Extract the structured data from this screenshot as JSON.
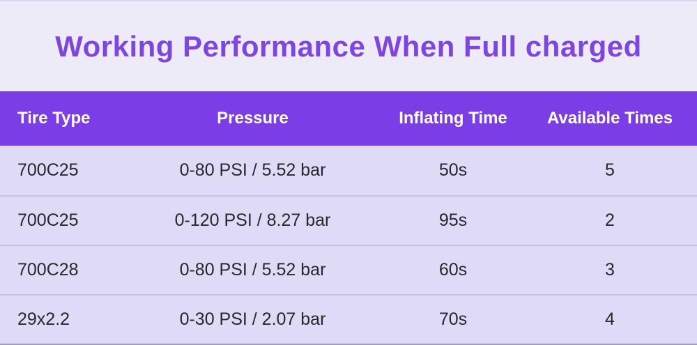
{
  "title": "Working Performance When Full charged",
  "table": {
    "headers": [
      "Tire Type",
      "Pressure",
      "Inflating Time",
      "Available Times"
    ],
    "rows": [
      [
        "700C25",
        "0-80 PSI / 5.52 bar",
        "50s",
        "5"
      ],
      [
        "700C25",
        "0-120 PSI / 8.27 bar",
        "95s",
        "2"
      ],
      [
        "700C28",
        "0-80 PSI / 5.52 bar",
        "60s",
        "3"
      ],
      [
        "29x2.2",
        "0-30 PSI / 2.07 bar",
        "70s",
        "4"
      ]
    ]
  },
  "colors": {
    "page_bg": "#eeebf9",
    "header_bg": "#7a3de6",
    "header_text": "#ffffff",
    "title_color": "#7d46e2",
    "row_bg": "#dfdbf6",
    "divider": "#c7c2dd",
    "row_text": "#28262f",
    "top_line": "#d9d3eb",
    "bottom_line": "#a39eb8"
  },
  "chart_data": {
    "type": "table",
    "title": "Working Performance When Full charged",
    "columns": [
      "Tire Type",
      "Pressure",
      "Inflating Time",
      "Available Times"
    ],
    "rows": [
      {
        "tire_type": "700C25",
        "pressure": "0-80 PSI / 5.52 bar",
        "inflating_time_s": 50,
        "available_times": 5
      },
      {
        "tire_type": "700C25",
        "pressure": "0-120 PSI / 8.27 bar",
        "inflating_time_s": 95,
        "available_times": 2
      },
      {
        "tire_type": "700C28",
        "pressure": "0-80 PSI / 5.52 bar",
        "inflating_time_s": 60,
        "available_times": 3
      },
      {
        "tire_type": "29x2.2",
        "pressure": "0-30 PSI / 2.07 bar",
        "inflating_time_s": 70,
        "available_times": 4
      }
    ]
  }
}
